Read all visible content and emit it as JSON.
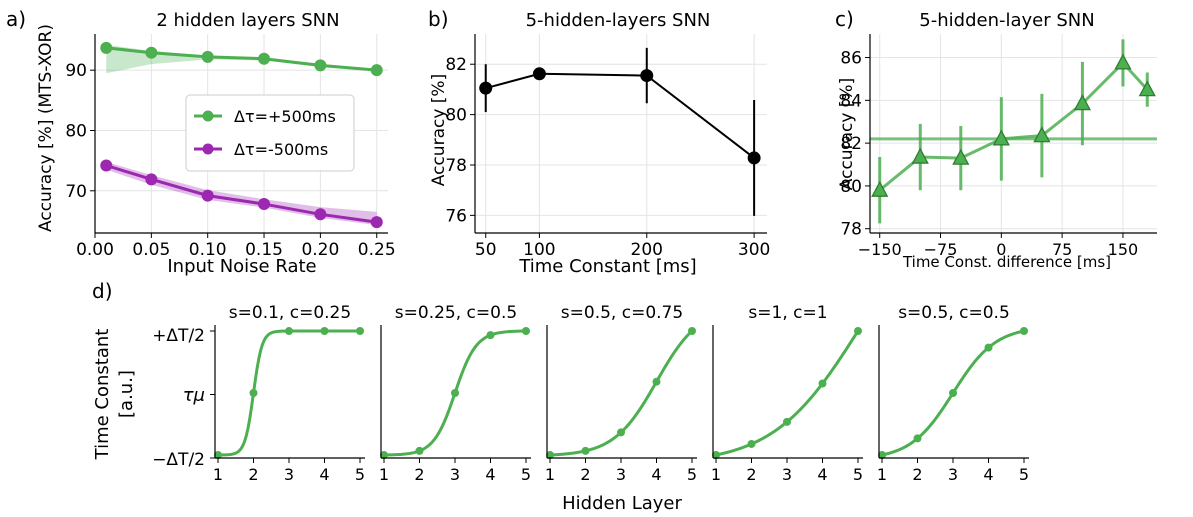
{
  "colors": {
    "green": "#4caf50",
    "green_dark": "#2e7d32",
    "purple": "#9c27b0",
    "black": "#000000"
  },
  "chart_data": [
    {
      "id": "a",
      "panel_letter": "a)",
      "type": "line",
      "title": "2 hidden layers SNN",
      "xlabel": "Input Noise Rate",
      "ylabel": "Accuracy [%] (MTS-XOR)",
      "xlim": [
        0.0,
        0.26
      ],
      "ylim": [
        63,
        96
      ],
      "xticks": [
        0.0,
        0.05,
        0.1,
        0.15,
        0.2,
        0.25
      ],
      "xtick_labels": [
        "0.00",
        "0.05",
        "0.10",
        "0.15",
        "0.20",
        "0.25"
      ],
      "yticks": [
        70,
        80,
        90
      ],
      "ytick_labels": [
        "70",
        "80",
        "90"
      ],
      "grid": true,
      "legend": "center-right",
      "series": [
        {
          "name": "Δτ=+500ms",
          "color": "green",
          "x": [
            0.01,
            0.05,
            0.1,
            0.15,
            0.2,
            0.25
          ],
          "y": [
            93.7,
            92.9,
            92.2,
            91.9,
            90.8,
            90.0
          ],
          "band_low": [
            89.5,
            91.0,
            91.8,
            91.6,
            90.5,
            89.8
          ],
          "band_high": [
            94.2,
            93.2,
            92.4,
            92.1,
            91.0,
            90.2
          ]
        },
        {
          "name": "Δτ=-500ms",
          "color": "purple",
          "x": [
            0.01,
            0.05,
            0.1,
            0.15,
            0.2,
            0.25
          ],
          "y": [
            74.2,
            71.9,
            69.2,
            67.8,
            66.1,
            64.8
          ],
          "band_low": [
            73.5,
            71.0,
            68.5,
            67.2,
            65.5,
            64.3
          ],
          "band_high": [
            74.8,
            72.6,
            70.1,
            68.6,
            67.3,
            66.5
          ]
        }
      ]
    },
    {
      "id": "b",
      "panel_letter": "b)",
      "type": "line",
      "title": "5-hidden-layers SNN",
      "xlabel": "Time Constant [ms]",
      "ylabel": "Accuracy [%]",
      "xlim": [
        40,
        312
      ],
      "ylim": [
        75.3,
        83.2
      ],
      "xticks": [
        50,
        100,
        200,
        300
      ],
      "xtick_labels": [
        "50",
        "100",
        "200",
        "300"
      ],
      "yticks": [
        76,
        78,
        80,
        82
      ],
      "ytick_labels": [
        "76",
        "78",
        "80",
        "82"
      ],
      "grid": true,
      "series": [
        {
          "color": "black",
          "x": [
            50,
            100,
            200,
            300
          ],
          "y": [
            81.05,
            81.62,
            81.55,
            78.28
          ],
          "err": [
            0.95,
            0,
            1.1,
            2.3
          ]
        }
      ]
    },
    {
      "id": "c",
      "panel_letter": "c)",
      "type": "line",
      "title": "5-hidden-layer SNN",
      "xlabel": "Time Const. difference [ms]",
      "ylabel": "Accuracy [%]",
      "xlim": [
        -162,
        192
      ],
      "ylim": [
        77.8,
        87.1
      ],
      "xticks": [
        -150,
        -75,
        0,
        75,
        150
      ],
      "xtick_labels": [
        "−150",
        "−75",
        "0",
        "75",
        "150"
      ],
      "yticks": [
        78,
        80,
        82,
        84,
        86
      ],
      "ytick_labels": [
        "78",
        "80",
        "82",
        "84",
        "86"
      ],
      "grid": true,
      "reference_y": 82.2,
      "series": [
        {
          "color": "green",
          "x": [
            -150,
            -100,
            -50,
            0,
            50,
            100,
            150,
            180
          ],
          "y": [
            79.8,
            81.35,
            81.3,
            82.2,
            82.35,
            83.85,
            85.75,
            84.5
          ],
          "err": [
            1.55,
            1.55,
            1.5,
            1.95,
            1.95,
            1.95,
            1.1,
            0.8
          ]
        }
      ]
    }
  ],
  "panel_d": {
    "panel_letter": "d)",
    "ylabel_line1": "Time Constant",
    "ylabel_line2": "[a.u.]",
    "xlabel": "Hidden Layer",
    "ytick_top": "+ΔT/2",
    "ytick_mid": "τμ",
    "ytick_bottom": "−ΔT/2",
    "xticks": [
      1,
      2,
      3,
      4,
      5
    ],
    "xtick_labels": [
      "1",
      "2",
      "3",
      "4",
      "5"
    ],
    "subplots": [
      {
        "title": "s=0.1, c=0.25",
        "s": 0.1,
        "c": 0.25
      },
      {
        "title": "s=0.25, c=0.5",
        "s": 0.25,
        "c": 0.5
      },
      {
        "title": "s=0.5, c=0.75",
        "s": 0.5,
        "c": 0.75
      },
      {
        "title": "s=1, c=1",
        "s": 1.0,
        "c": 1.0
      },
      {
        "title": "s=0.5, c=0.5",
        "s": 0.5,
        "c": 0.5
      }
    ]
  }
}
